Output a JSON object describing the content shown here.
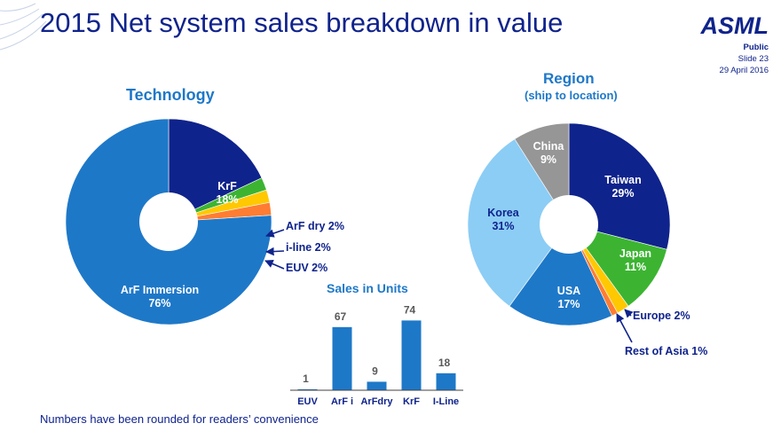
{
  "title": "2015 Net system sales breakdown in value",
  "header": {
    "brand": "ASML",
    "classification": "Public",
    "slide": "Slide 23",
    "date": "29 April 2016"
  },
  "footnote": "Numbers have been rounded for readers’ convenience",
  "colors": {
    "navy": "#0f238c",
    "blue": "#1e78c8",
    "light_blue": "#8ccdf5",
    "gray": "#969696",
    "green": "#3cb432",
    "yellow": "#ffc800",
    "orange": "#ff7d32"
  },
  "chart_data": [
    {
      "type": "pie",
      "title": "Technology",
      "unit": "%",
      "slices": [
        {
          "label": "KrF",
          "value": 18,
          "color": "#0f238c"
        },
        {
          "label": "ArF  dry",
          "value": 2,
          "color": "#3cb432"
        },
        {
          "label": "i-line",
          "value": 2,
          "color": "#ffc800"
        },
        {
          "label": "EUV",
          "value": 2,
          "color": "#ff7d32"
        },
        {
          "label": "ArF Immersion",
          "value": 76,
          "color": "#1e78c8"
        }
      ]
    },
    {
      "type": "pie",
      "title": "Region",
      "subtitle": "(ship to location)",
      "unit": "%",
      "slices": [
        {
          "label": "Taiwan",
          "value": 29,
          "color": "#0f238c"
        },
        {
          "label": "Japan",
          "value": 11,
          "color": "#3cb432"
        },
        {
          "label": "Europe",
          "value": 2,
          "color": "#ffc800"
        },
        {
          "label": "Rest of Asia",
          "value": 1,
          "color": "#ff7d32"
        },
        {
          "label": "USA",
          "value": 17,
          "color": "#1e78c8"
        },
        {
          "label": "Korea",
          "value": 31,
          "color": "#8ccdf5"
        },
        {
          "label": "China",
          "value": 9,
          "color": "#969696"
        }
      ]
    },
    {
      "type": "bar",
      "title": "Sales in Units",
      "categories": [
        "EUV",
        "ArF i",
        "ArFdry",
        "KrF",
        "I-Line"
      ],
      "values": [
        1,
        67,
        9,
        74,
        18
      ],
      "ylim": [
        0,
        80
      ],
      "color": "#1e78c8"
    }
  ]
}
